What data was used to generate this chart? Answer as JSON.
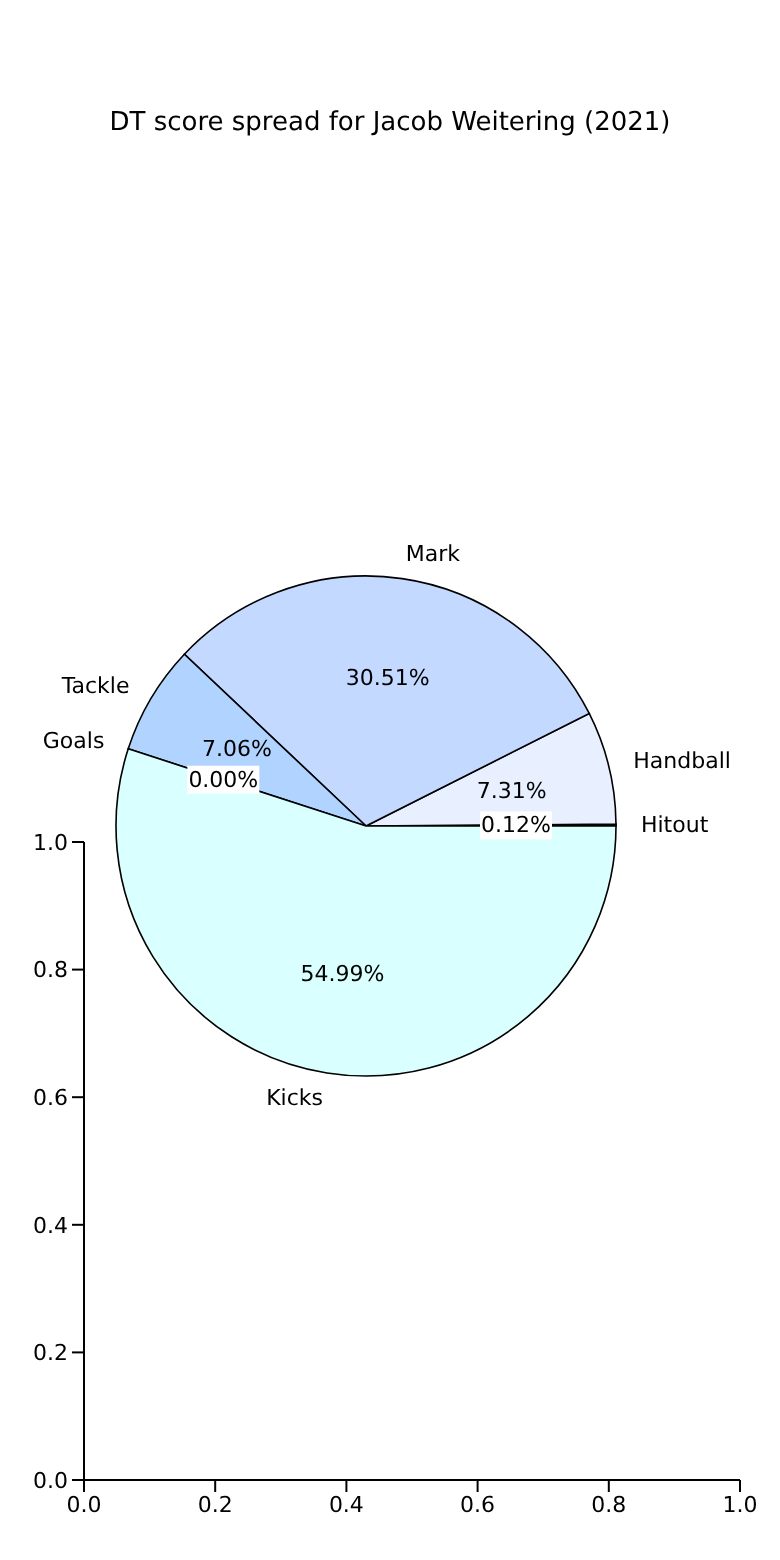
{
  "chart_data": [
    {
      "type": "pie",
      "title": "DT score spread for Jacob Weitering (2021)",
      "categories": [
        "Hitout",
        "Handball",
        "Mark",
        "Tackle",
        "Goals",
        "Kicks"
      ],
      "values": [
        0.12,
        7.31,
        30.51,
        7.06,
        0.0,
        54.99
      ],
      "colors": [
        "#ffffff",
        "#e8f0ff",
        "#c4d9ff",
        "#b0d4ff",
        "#ffffff",
        "#d9ffff"
      ],
      "value_labels": [
        "0.12%",
        "7.31%",
        "30.51%",
        "7.06%",
        "0.00%",
        "54.99%"
      ]
    },
    {
      "type": "scatter",
      "xlim": [
        0,
        1
      ],
      "xticks": [
        {
          "value": 0,
          "label": "0.0"
        },
        {
          "value": 0.2,
          "label": "0.2"
        },
        {
          "value": 0.4,
          "label": "0.4"
        },
        {
          "value": 0.6,
          "label": "0.6"
        },
        {
          "value": 0.8,
          "label": "0.8"
        },
        {
          "value": 1,
          "label": "1.0"
        }
      ],
      "ylim": [
        0,
        1
      ],
      "yticks": [
        {
          "value": 0,
          "label": "0.0"
        },
        {
          "value": 0.2,
          "label": "0.2"
        },
        {
          "value": 0.4,
          "label": "0.4"
        },
        {
          "value": 0.6,
          "label": "0.6"
        },
        {
          "value": 0.8,
          "label": "0.8"
        },
        {
          "value": 1,
          "label": "1.0"
        }
      ]
    }
  ]
}
